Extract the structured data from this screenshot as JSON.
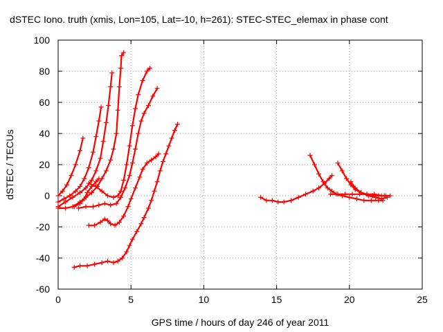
{
  "chart_data": {
    "type": "scatter",
    "title": "dSTEC Iono. truth (xmis, Lon=105, Lat=-10, h=261): STEC-STEC_elemax in phase cont",
    "xlabel": "GPS time / hours of day 246 of year 2011",
    "ylabel": "dSTEC  / TECUs",
    "xlim": [
      0,
      25
    ],
    "ylim": [
      -60,
      100
    ],
    "xticks": [
      0,
      5,
      10,
      15,
      20,
      25
    ],
    "yticks": [
      -60,
      -40,
      -20,
      0,
      20,
      40,
      60,
      80,
      100
    ],
    "grid": true,
    "marker": "plus",
    "color": "#ff0000",
    "series": [
      {
        "points": [
          [
            0.0,
            0
          ],
          [
            0.3,
            3
          ],
          [
            0.6,
            7
          ],
          [
            0.9,
            13
          ],
          [
            1.2,
            20
          ],
          [
            1.5,
            29
          ],
          [
            1.7,
            37
          ]
        ]
      },
      {
        "points": [
          [
            0.0,
            -4
          ],
          [
            0.4,
            -2
          ],
          [
            0.8,
            0
          ],
          [
            1.2,
            3
          ],
          [
            1.5,
            6
          ],
          [
            1.8,
            11
          ],
          [
            2.1,
            18
          ],
          [
            2.4,
            28
          ],
          [
            2.6,
            38
          ],
          [
            2.8,
            48
          ],
          [
            2.95,
            57
          ]
        ]
      },
      {
        "points": [
          [
            0.0,
            -7
          ],
          [
            0.5,
            -4
          ],
          [
            1.0,
            -1
          ],
          [
            1.5,
            2
          ],
          [
            1.9,
            5
          ],
          [
            2.3,
            10
          ],
          [
            2.6,
            16
          ],
          [
            2.9,
            24
          ],
          [
            3.1,
            35
          ],
          [
            3.3,
            47
          ],
          [
            3.45,
            58
          ],
          [
            3.6,
            70
          ],
          [
            3.7,
            79
          ]
        ]
      },
      {
        "points": [
          [
            0.0,
            -8
          ],
          [
            0.5,
            -8
          ],
          [
            1.0,
            -7
          ],
          [
            1.5,
            -4
          ],
          [
            1.9,
            -1
          ],
          [
            2.3,
            2
          ],
          [
            2.7,
            6
          ],
          [
            3.0,
            11
          ],
          [
            3.3,
            16
          ],
          [
            3.6,
            23
          ],
          [
            3.8,
            30
          ],
          [
            4.0,
            40
          ],
          [
            4.1,
            55
          ],
          [
            4.2,
            70
          ],
          [
            4.3,
            82
          ],
          [
            4.35,
            90
          ],
          [
            4.5,
            92
          ]
        ]
      },
      {
        "points": [
          [
            1.1,
            -7
          ],
          [
            1.5,
            -5
          ],
          [
            1.8,
            -2
          ],
          [
            2.0,
            2
          ],
          [
            2.3,
            6
          ],
          [
            2.6,
            9
          ],
          [
            2.8,
            11
          ]
        ]
      },
      {
        "points": [
          [
            2.1,
            8
          ],
          [
            2.6,
            6
          ],
          [
            3.0,
            3
          ],
          [
            3.4,
            0
          ],
          [
            3.8,
            -1
          ],
          [
            4.1,
            0
          ],
          [
            4.3,
            3
          ],
          [
            4.5,
            10
          ],
          [
            4.7,
            20
          ],
          [
            4.9,
            32
          ],
          [
            5.1,
            45
          ],
          [
            5.3,
            56
          ],
          [
            5.5,
            65
          ],
          [
            5.8,
            74
          ],
          [
            6.1,
            80
          ],
          [
            6.3,
            82
          ]
        ]
      },
      {
        "points": [
          [
            1.4,
            -8
          ],
          [
            1.9,
            -7
          ],
          [
            2.4,
            -7
          ],
          [
            2.8,
            -6
          ],
          [
            3.2,
            -5
          ],
          [
            3.6,
            -6
          ],
          [
            4.0,
            -5
          ],
          [
            4.3,
            -1
          ],
          [
            4.6,
            5
          ],
          [
            4.9,
            13
          ],
          [
            5.1,
            21
          ],
          [
            5.3,
            30
          ],
          [
            5.5,
            40
          ],
          [
            5.7,
            48
          ],
          [
            5.9,
            53
          ],
          [
            6.2,
            58
          ],
          [
            6.5,
            64
          ],
          [
            6.8,
            69
          ]
        ]
      },
      {
        "points": [
          [
            2.1,
            -19
          ],
          [
            2.5,
            -19
          ],
          [
            2.9,
            -17
          ],
          [
            3.2,
            -15
          ],
          [
            3.4,
            -16
          ],
          [
            3.6,
            -18
          ],
          [
            3.9,
            -19
          ],
          [
            4.2,
            -17
          ],
          [
            4.5,
            -13
          ],
          [
            4.8,
            -7
          ],
          [
            5.0,
            -2
          ],
          [
            5.3,
            5
          ],
          [
            5.6,
            12
          ],
          [
            5.8,
            17
          ],
          [
            6.1,
            21
          ],
          [
            6.4,
            23
          ],
          [
            6.7,
            25
          ],
          [
            6.9,
            27
          ]
        ]
      },
      {
        "points": [
          [
            1.1,
            -46
          ],
          [
            1.5,
            -45
          ],
          [
            2.0,
            -45
          ],
          [
            2.5,
            -44
          ],
          [
            3.0,
            -43
          ],
          [
            3.4,
            -42
          ],
          [
            3.8,
            -43
          ],
          [
            4.1,
            -42
          ],
          [
            4.4,
            -40
          ],
          [
            4.7,
            -36
          ],
          [
            4.9,
            -32
          ],
          [
            5.1,
            -28
          ],
          [
            5.4,
            -23
          ],
          [
            5.7,
            -18
          ],
          [
            5.9,
            -14
          ],
          [
            6.2,
            -8
          ],
          [
            6.4,
            -3
          ],
          [
            6.6,
            3
          ],
          [
            6.8,
            9
          ],
          [
            7.0,
            16
          ],
          [
            7.2,
            22
          ],
          [
            7.4,
            27
          ],
          [
            7.6,
            32
          ],
          [
            7.8,
            37
          ],
          [
            8.0,
            42
          ],
          [
            8.2,
            46
          ]
        ]
      },
      {
        "points": [
          [
            13.9,
            -1
          ],
          [
            14.3,
            -3
          ],
          [
            14.7,
            -3
          ],
          [
            15.1,
            -4
          ],
          [
            15.5,
            -4
          ],
          [
            16.0,
            -3
          ],
          [
            16.5,
            -1
          ],
          [
            17.0,
            1
          ],
          [
            17.5,
            3
          ],
          [
            17.9,
            5
          ],
          [
            18.3,
            8
          ],
          [
            18.6,
            11
          ],
          [
            18.8,
            13
          ]
        ]
      },
      {
        "points": [
          [
            17.3,
            26
          ],
          [
            17.6,
            20
          ],
          [
            17.9,
            14
          ],
          [
            18.2,
            9
          ],
          [
            18.5,
            5
          ],
          [
            18.8,
            3
          ],
          [
            19.1,
            1
          ],
          [
            19.5,
            0
          ],
          [
            20.0,
            -1
          ],
          [
            20.5,
            -2
          ],
          [
            21.0,
            -3
          ],
          [
            21.5,
            -3
          ],
          [
            22.0,
            -3
          ],
          [
            22.3,
            -3
          ]
        ]
      },
      {
        "points": [
          [
            19.2,
            21
          ],
          [
            19.5,
            16
          ],
          [
            19.8,
            11
          ],
          [
            20.1,
            7
          ],
          [
            20.4,
            4
          ],
          [
            20.8,
            2
          ],
          [
            21.2,
            1
          ],
          [
            21.6,
            0
          ],
          [
            22.0,
            0
          ],
          [
            22.4,
            0
          ],
          [
            22.8,
            0
          ]
        ]
      },
      {
        "points": [
          [
            18.7,
            1
          ],
          [
            19.2,
            1
          ],
          [
            19.7,
            1
          ],
          [
            20.2,
            1
          ],
          [
            20.7,
            1
          ],
          [
            21.2,
            1
          ],
          [
            21.7,
            1
          ],
          [
            22.2,
            0
          ],
          [
            22.5,
            0
          ]
        ]
      },
      {
        "points": [
          [
            20.1,
            9
          ],
          [
            20.4,
            5
          ],
          [
            20.8,
            2
          ],
          [
            21.3,
            0
          ],
          [
            21.8,
            -1
          ],
          [
            22.2,
            -2
          ],
          [
            22.6,
            -1
          ]
        ]
      }
    ]
  }
}
